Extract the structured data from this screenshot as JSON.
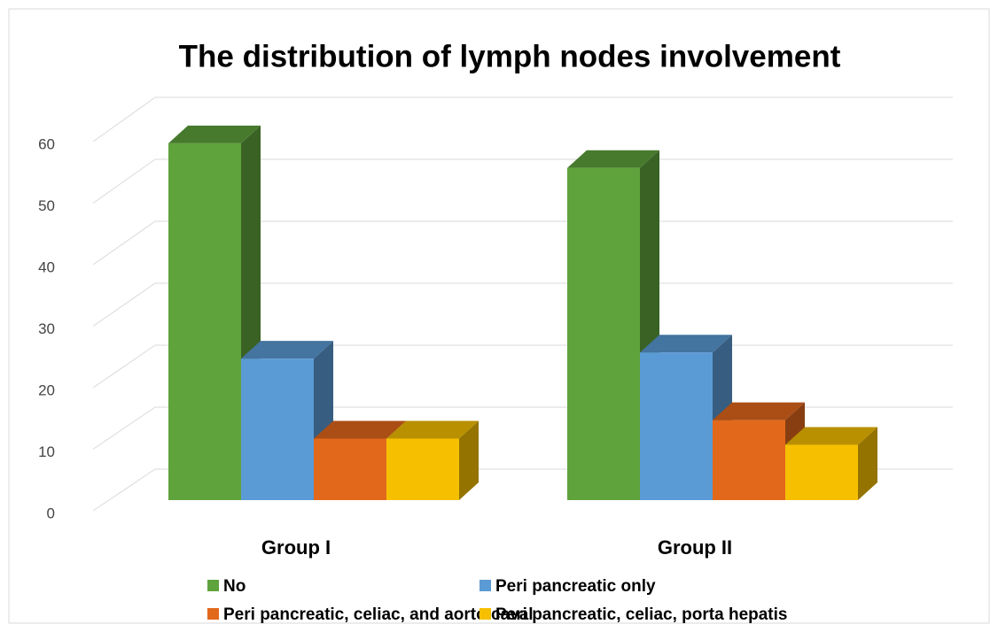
{
  "chart_data": {
    "type": "bar3d",
    "title": "The distribution of lymph nodes involvement",
    "categories": [
      "Group I",
      "Group II"
    ],
    "series": [
      {
        "name": "No",
        "color": "#5fa33c",
        "values": [
          58,
          54
        ]
      },
      {
        "name": "Peri pancreatic only",
        "color": "#5b9bd5",
        "values": [
          23,
          24
        ]
      },
      {
        "name": "Peri pancreatic, celiac, and  aorto caval",
        "color": "#e2681c",
        "values": [
          10,
          13
        ]
      },
      {
        "name": "Peri pancreatic, celiac, porta hepatis",
        "color": "#f6c000",
        "values": [
          10,
          9
        ]
      }
    ],
    "ylim": [
      0,
      60
    ],
    "yticks": [
      0,
      10,
      20,
      30,
      40,
      50,
      60
    ],
    "grid": true
  }
}
